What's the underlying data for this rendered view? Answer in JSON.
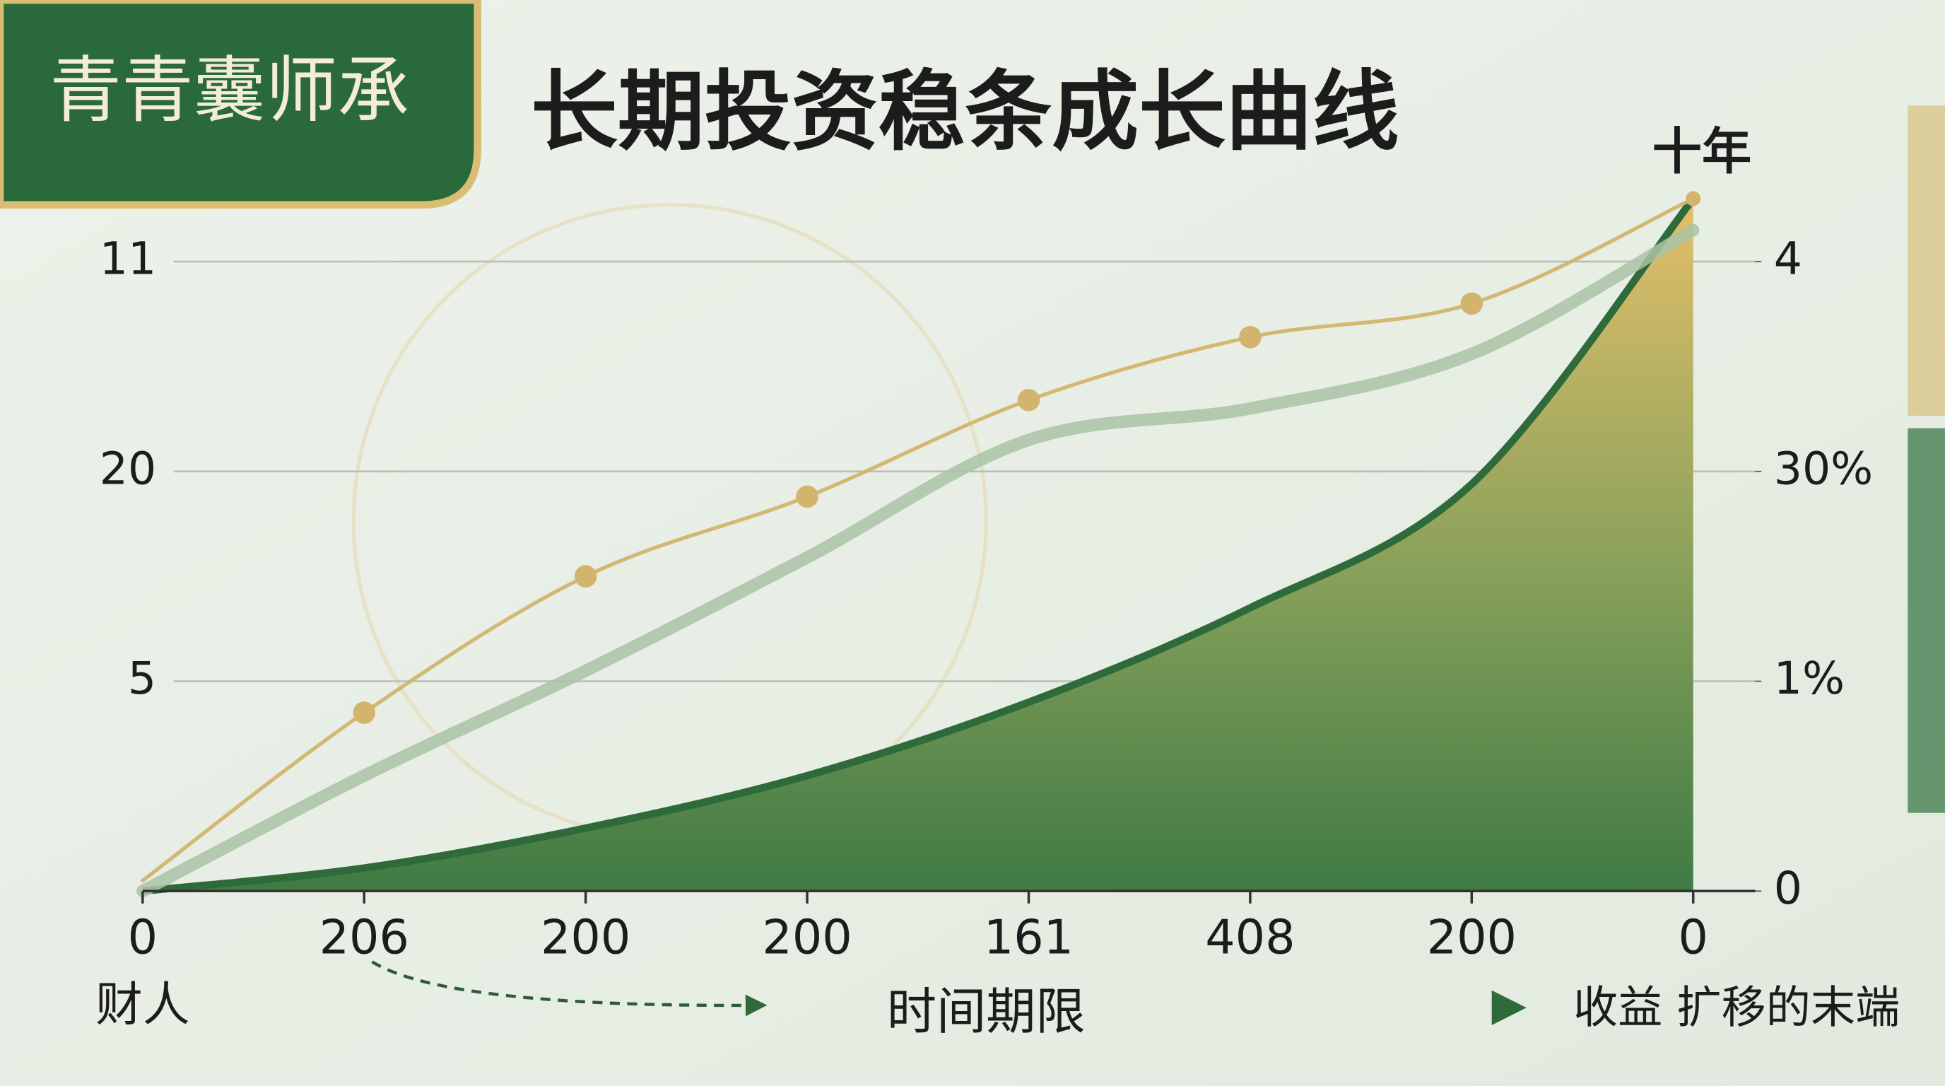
{
  "logo": "青青囊师承",
  "chart_data": {
    "type": "line",
    "title": "长期投资稳条成长曲线",
    "annotation": "十年",
    "x_start_label": "财人",
    "xlabel": "时间期限",
    "x_end_label": "收益 扩移的末端",
    "categories": [
      "0",
      "206",
      "200",
      "200",
      "161",
      "408",
      "200",
      "0"
    ],
    "ylim": [
      0,
      3.3
    ],
    "yticks": [
      {
        "value": 1,
        "label": "5"
      },
      {
        "value": 2,
        "label": "20"
      },
      {
        "value": 3,
        "label": "11"
      }
    ],
    "y2lim": [
      0,
      3.3
    ],
    "y2ticks": [
      0,
      {
        "value": 1,
        "label": "1%"
      },
      {
        "value": 2,
        "label": "30%"
      },
      {
        "value": 3,
        "label": "4"
      }
    ],
    "grid": true,
    "series": [
      {
        "type": "area",
        "color": "#2f6a3a",
        "values": [
          0,
          0.11,
          0.3,
          0.55,
          0.9,
          1.35,
          1.94,
          3.3
        ]
      },
      {
        "type": "line",
        "color": "#a9c3a6",
        "values": [
          0,
          0.55,
          1.05,
          1.59,
          2.15,
          2.3,
          2.56,
          3.15
        ]
      },
      {
        "type": "line",
        "color": "#d2b46e",
        "markers": true,
        "values": [
          0.05,
          0.85,
          1.5,
          1.88,
          2.34,
          2.64,
          2.8,
          3.3
        ]
      }
    ]
  }
}
